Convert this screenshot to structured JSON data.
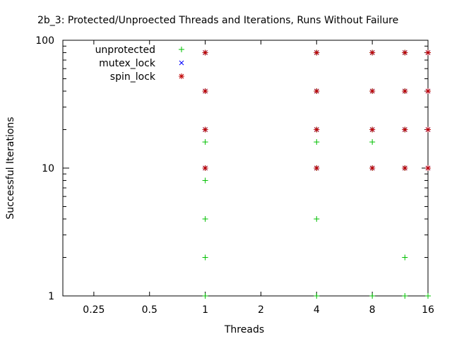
{
  "chart_data": {
    "type": "scatter",
    "title": "2b_3: Protected/Unproected Threads and Iterations, Runs Without Failure",
    "xlabel": "Threads",
    "ylabel": "Successful Iterations",
    "x_scale": "log2",
    "y_scale": "log10",
    "xlim": [
      0.17,
      16
    ],
    "ylim": [
      1,
      100
    ],
    "x_ticks": [
      0.25,
      0.5,
      1,
      2,
      4,
      8,
      16
    ],
    "x_tick_labels": [
      "0.25",
      "0.5",
      "1",
      "2",
      "4",
      "8",
      "16"
    ],
    "y_ticks": [
      1,
      10,
      100
    ],
    "y_tick_labels": [
      "1",
      "10",
      "100"
    ],
    "grid": false,
    "legend_position": "top-left",
    "series": [
      {
        "name": "unprotected",
        "marker": "plus",
        "color": "#00c000",
        "points": [
          [
            1,
            1
          ],
          [
            1,
            2
          ],
          [
            1,
            4
          ],
          [
            1,
            8
          ],
          [
            1,
            10
          ],
          [
            1,
            16
          ],
          [
            1,
            20
          ],
          [
            1,
            40
          ],
          [
            1,
            80
          ],
          [
            4,
            1
          ],
          [
            4,
            4
          ],
          [
            4,
            10
          ],
          [
            4,
            16
          ],
          [
            4,
            20
          ],
          [
            4,
            40
          ],
          [
            4,
            80
          ],
          [
            8,
            1
          ],
          [
            8,
            10
          ],
          [
            8,
            16
          ],
          [
            8,
            20
          ],
          [
            8,
            40
          ],
          [
            8,
            80
          ],
          [
            12,
            1
          ],
          [
            12,
            2
          ],
          [
            12,
            10
          ],
          [
            12,
            20
          ],
          [
            12,
            40
          ],
          [
            12,
            80
          ],
          [
            16,
            1
          ],
          [
            16,
            10
          ],
          [
            16,
            20
          ],
          [
            16,
            40
          ],
          [
            16,
            80
          ]
        ]
      },
      {
        "name": "mutex_lock",
        "marker": "cross",
        "color": "#0000ff",
        "points": [
          [
            1,
            10
          ],
          [
            1,
            20
          ],
          [
            1,
            40
          ],
          [
            1,
            80
          ],
          [
            4,
            10
          ],
          [
            4,
            20
          ],
          [
            4,
            40
          ],
          [
            4,
            80
          ],
          [
            8,
            10
          ],
          [
            8,
            20
          ],
          [
            8,
            40
          ],
          [
            8,
            80
          ],
          [
            12,
            10
          ],
          [
            12,
            20
          ],
          [
            12,
            40
          ],
          [
            12,
            80
          ],
          [
            16,
            10
          ],
          [
            16,
            20
          ],
          [
            16,
            40
          ],
          [
            16,
            80
          ]
        ]
      },
      {
        "name": "spin_lock",
        "marker": "star",
        "color": "#c00000",
        "points": [
          [
            1,
            10
          ],
          [
            1,
            20
          ],
          [
            1,
            40
          ],
          [
            1,
            80
          ],
          [
            4,
            10
          ],
          [
            4,
            20
          ],
          [
            4,
            40
          ],
          [
            4,
            80
          ],
          [
            8,
            10
          ],
          [
            8,
            20
          ],
          [
            8,
            40
          ],
          [
            8,
            80
          ],
          [
            12,
            10
          ],
          [
            12,
            20
          ],
          [
            12,
            40
          ],
          [
            12,
            80
          ],
          [
            16,
            10
          ],
          [
            16,
            20
          ],
          [
            16,
            40
          ],
          [
            16,
            80
          ]
        ]
      }
    ]
  }
}
